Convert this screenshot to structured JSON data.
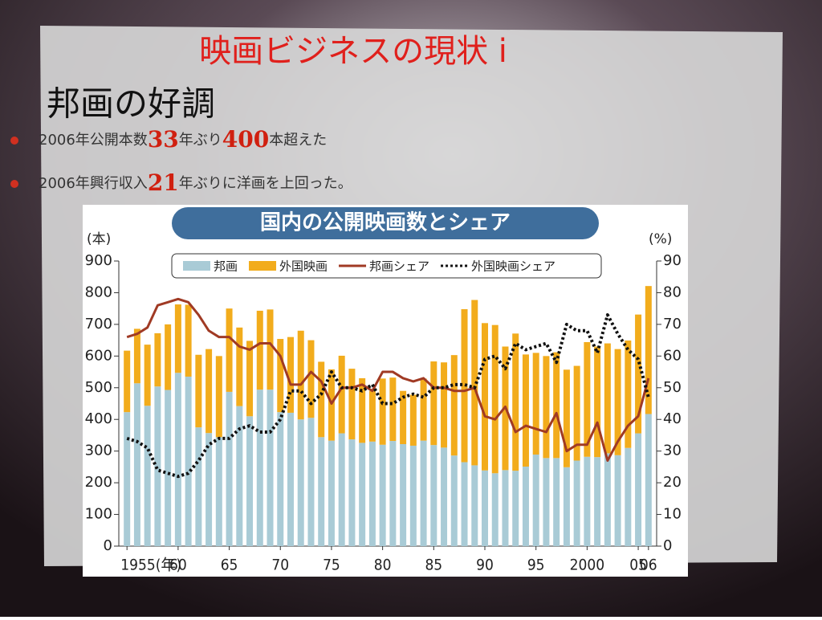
{
  "slide": {
    "title": "映画ビジネスの現状 i",
    "subtitle": "邦画の好調",
    "bullets": [
      [
        "2006年公開本数",
        "33",
        "年ぶり",
        "400",
        "本超えた"
      ],
      [
        "2006年興行収入",
        "21",
        "年ぶりに洋画を上回った。"
      ]
    ]
  },
  "chart_data": {
    "type": "bar",
    "stacked": true,
    "title": "国内の公開映画数とシェア",
    "y_label": "(本)",
    "y2_label": "(%)",
    "x": [
      1955,
      1956,
      1957,
      1958,
      1959,
      1960,
      1961,
      1962,
      1963,
      1964,
      1965,
      1966,
      1967,
      1968,
      1969,
      1970,
      1971,
      1972,
      1973,
      1974,
      1975,
      1976,
      1977,
      1978,
      1979,
      1980,
      1981,
      1982,
      1983,
      1984,
      1985,
      1986,
      1987,
      1988,
      1989,
      1990,
      1991,
      1992,
      1993,
      1994,
      1995,
      1996,
      1997,
      1998,
      1999,
      2000,
      2001,
      2002,
      2003,
      2004,
      2005,
      2006
    ],
    "xlim": [
      1954.2,
      2006.8
    ],
    "xticks": [
      {
        "value": 1955,
        "label": "1955(年)"
      },
      60,
      65,
      70,
      75,
      80,
      85,
      90,
      95,
      {
        "value": 2000,
        "label": "2000"
      },
      {
        "value": 2005,
        "label": "05"
      },
      {
        "value": 2006,
        "label": "06"
      }
    ],
    "ylim": [
      0,
      900
    ],
    "yticks": [
      0,
      100,
      200,
      300,
      400,
      500,
      600,
      700,
      800,
      900
    ],
    "y2lim": [
      0,
      90
    ],
    "y2ticks": [
      0,
      10,
      20,
      30,
      40,
      50,
      60,
      70,
      80,
      90
    ],
    "series": [
      {
        "name": "邦画",
        "color": "#a9cbd6",
        "values": [
          423,
          514,
          443,
          504,
          493,
          547,
          535,
          375,
          357,
          344,
          487,
          442,
          410,
          494,
          494,
          423,
          421,
          400,
          405,
          344,
          333,
          356,
          337,
          326,
          330,
          320,
          332,
          322,
          317,
          333,
          319,
          311,
          286,
          265,
          255,
          239,
          230,
          240,
          238,
          251,
          289,
          278,
          278,
          249,
          270,
          282,
          281,
          293,
          287,
          310,
          356,
          417
        ]
      },
      {
        "name": "外国映画",
        "color": "#f2ac1c",
        "values": [
          194,
          172,
          193,
          168,
          207,
          216,
          227,
          229,
          265,
          256,
          263,
          248,
          238,
          249,
          253,
          231,
          239,
          280,
          245,
          238,
          225,
          245,
          223,
          204,
          160,
          209,
          200,
          168,
          161,
          196,
          264,
          269,
          317,
          483,
          522,
          465,
          468,
          390,
          433,
          354,
          321,
          322,
          334,
          308,
          299,
          362,
          349,
          347,
          335,
          339,
          375,
          404
        ]
      },
      {
        "name": "邦画シェア",
        "color": "#a03a24",
        "axis": "y2",
        "type": "line",
        "values": [
          66,
          67,
          69,
          76,
          77,
          78,
          77,
          73,
          68,
          66,
          66,
          63,
          62,
          64,
          64,
          60,
          51,
          51,
          55,
          52,
          45,
          50,
          50,
          51,
          49,
          55,
          55,
          53,
          52,
          53,
          50,
          50,
          49,
          49,
          50,
          41,
          40,
          44,
          36,
          38,
          37,
          36,
          42,
          30,
          32,
          32,
          39,
          27,
          33,
          38,
          41,
          53
        ]
      },
      {
        "name": "外国映画シェア",
        "color": "#111111",
        "axis": "y2",
        "type": "line",
        "dotted": true,
        "values": [
          34,
          33,
          31,
          24,
          23,
          22,
          23,
          27,
          32,
          34,
          34,
          37,
          38,
          36,
          36,
          40,
          49,
          49,
          45,
          48,
          55,
          50,
          50,
          49,
          51,
          45,
          45,
          47,
          48,
          47,
          50,
          50,
          51,
          51,
          50,
          59,
          60,
          56,
          64,
          62,
          63,
          64,
          58,
          70,
          68,
          68,
          61,
          73,
          67,
          62,
          59,
          47
        ]
      }
    ]
  }
}
